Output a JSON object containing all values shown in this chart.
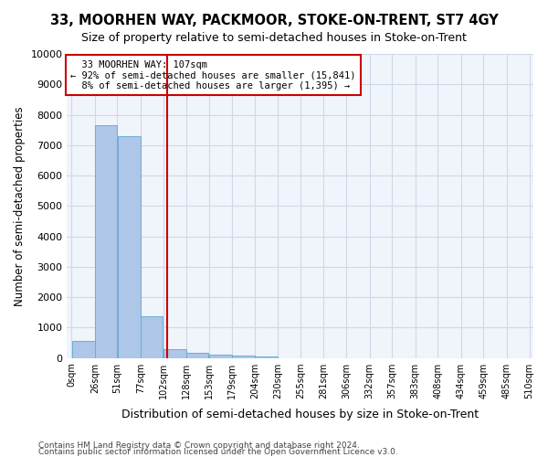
{
  "title": "33, MOORHEN WAY, PACKMOOR, STOKE-ON-TRENT, ST7 4GY",
  "subtitle": "Size of property relative to semi-detached houses in Stoke-on-Trent",
  "xlabel": "Distribution of semi-detached houses by size in Stoke-on-Trent",
  "ylabel": "Number of semi-detached properties",
  "footer_line1": "Contains HM Land Registry data © Crown copyright and database right 2024.",
  "footer_line2": "Contains public sector information licensed under the Open Government Licence v3.0.",
  "property_size": 107,
  "property_label": "33 MOORHEN WAY: 107sqm",
  "pct_smaller": 92,
  "pct_larger": 8,
  "n_smaller": 15841,
  "n_larger": 1395,
  "bin_starts": [
    0,
    26,
    51,
    77,
    102,
    128,
    153,
    179,
    204,
    230,
    255,
    281,
    306,
    332,
    357,
    383,
    408,
    434,
    459,
    485,
    510
  ],
  "bar_heights": [
    570,
    7650,
    7280,
    1360,
    300,
    165,
    110,
    80,
    45,
    0,
    0,
    0,
    0,
    0,
    0,
    0,
    0,
    0,
    0,
    0
  ],
  "bar_color": "#aec6e8",
  "bar_edge_color": "#6aaed6",
  "grid_color": "#d0d8e8",
  "vline_color": "#cc0000",
  "annotation_box_color": "#cc0000",
  "background_color": "#f0f4fb",
  "ylim": [
    0,
    10000
  ],
  "yticks": [
    0,
    1000,
    2000,
    3000,
    4000,
    5000,
    6000,
    7000,
    8000,
    9000,
    10000
  ],
  "xtick_labels": [
    "0sqm",
    "26sqm",
    "51sqm",
    "77sqm",
    "102sqm",
    "128sqm",
    "153sqm",
    "179sqm",
    "204sqm",
    "230sqm",
    "255sqm",
    "281sqm",
    "306sqm",
    "332sqm",
    "357sqm",
    "383sqm",
    "408sqm",
    "434sqm",
    "459sqm",
    "485sqm",
    "510sqm"
  ]
}
